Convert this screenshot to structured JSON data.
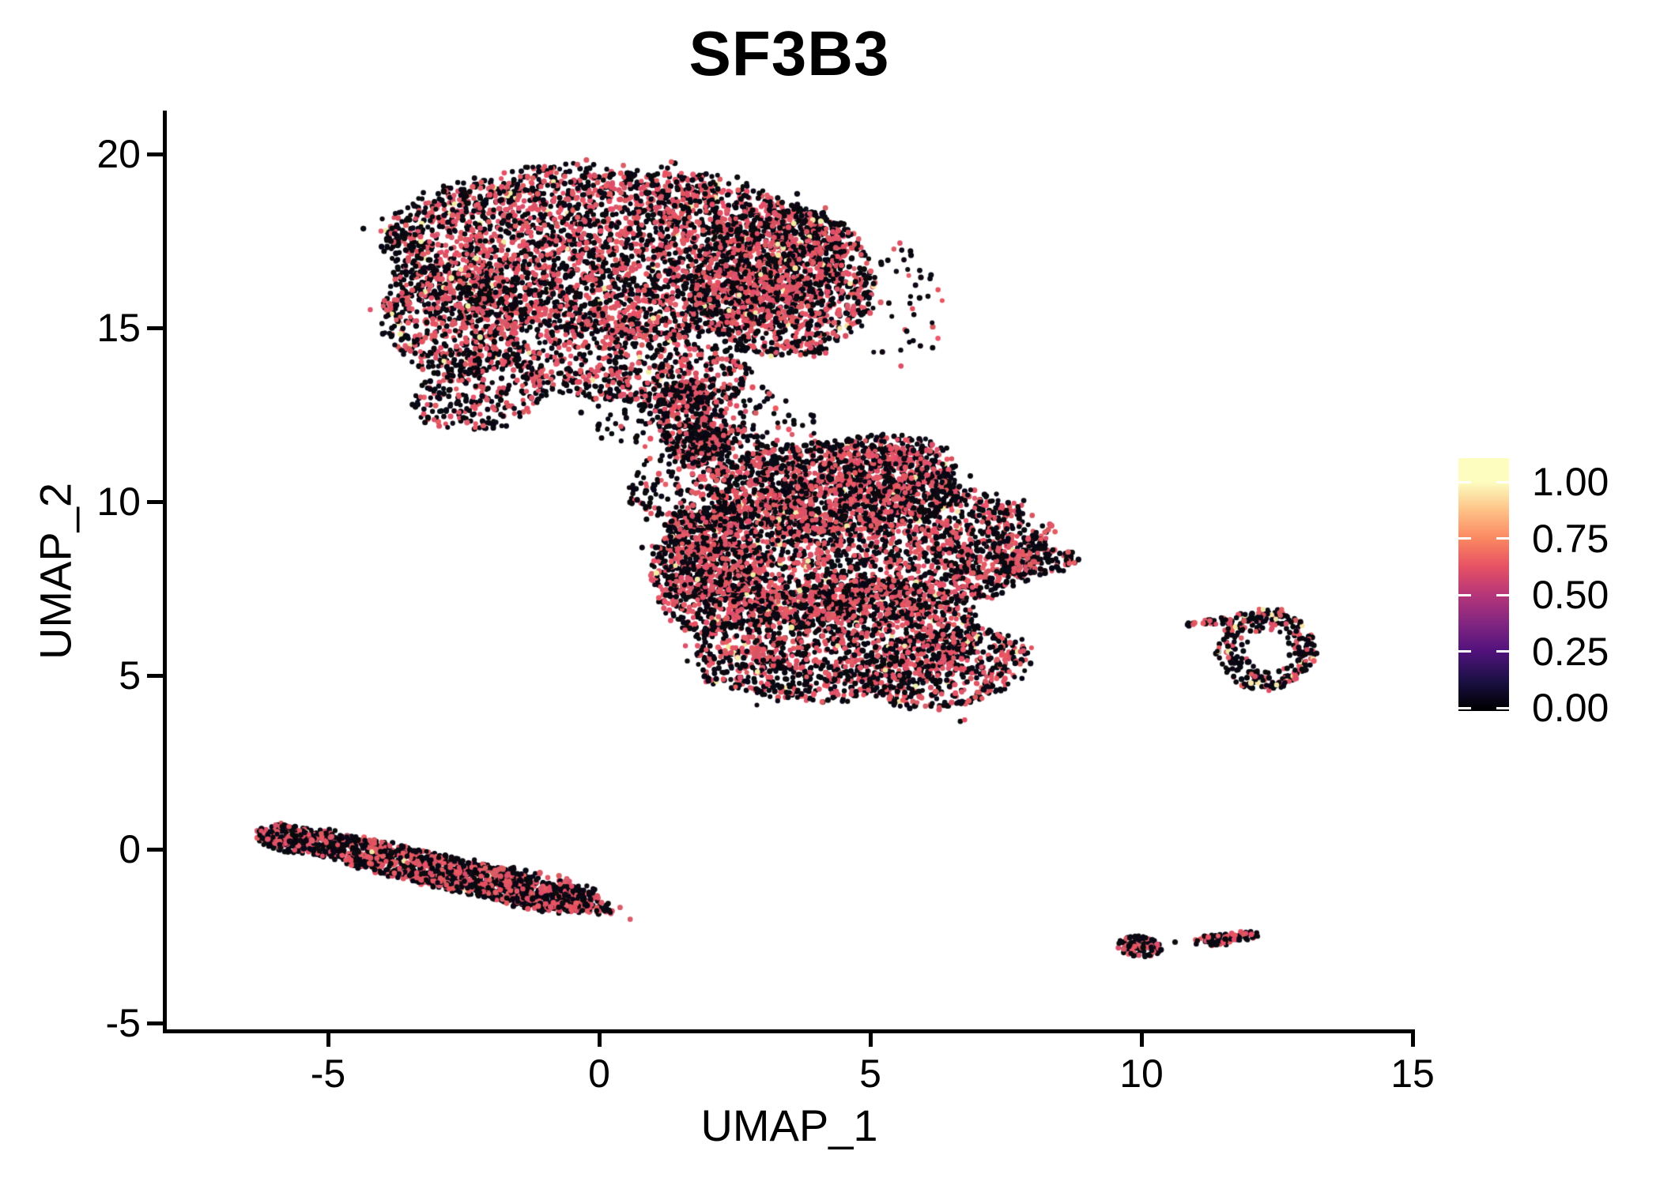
{
  "title": "SF3B3",
  "chart_data": {
    "type": "scatter",
    "title": "SF3B3",
    "xlabel": "UMAP_1",
    "ylabel": "UMAP_2",
    "x_ticks": [
      -5,
      0,
      5,
      10,
      15
    ],
    "y_ticks": [
      20,
      15,
      10,
      5,
      0,
      -5
    ],
    "xlim": [
      -8.3,
      15.3
    ],
    "ylim": [
      -5.2,
      21.2
    ],
    "grid": false,
    "legend_position": "right",
    "legend": {
      "tick_labels": [
        "1.00",
        "0.75",
        "0.50",
        "0.25",
        "0.00"
      ],
      "tick_values": [
        1.0,
        0.75,
        0.5,
        0.25,
        0.0
      ],
      "colormap": "magma",
      "stops": [
        {
          "v": 0.0,
          "color": "#000004"
        },
        {
          "v": 0.125,
          "color": "#1D1147"
        },
        {
          "v": 0.25,
          "color": "#51127C"
        },
        {
          "v": 0.375,
          "color": "#822681"
        },
        {
          "v": 0.5,
          "color": "#B63679"
        },
        {
          "v": 0.625,
          "color": "#E65164"
        },
        {
          "v": 0.75,
          "color": "#FB8861"
        },
        {
          "v": 0.875,
          "color": "#FEC287"
        },
        {
          "v": 1.0,
          "color": "#FCFDBF"
        }
      ]
    },
    "point_colors": {
      "low": "#07060E",
      "mid": "#E25464",
      "high": "#F2ECA4"
    },
    "point_radius_px": 3.3,
    "clusters": [
      {
        "name": "top-blob-main",
        "cx": 0.3,
        "cy": 17.2,
        "rx": 4.3,
        "ry": 2.45,
        "rot": -5,
        "n": 3600,
        "mix": [
          0.52,
          0.465,
          0.015
        ]
      },
      {
        "name": "top-blob-right-lobe",
        "cx": 3.4,
        "cy": 16.3,
        "rx": 1.7,
        "ry": 2.2,
        "rot": 0,
        "n": 1250,
        "mix": [
          0.52,
          0.465,
          0.015
        ]
      },
      {
        "name": "top-blob-left-lobe",
        "cx": -2.7,
        "cy": 15.2,
        "rx": 1.35,
        "ry": 1.6,
        "rot": 15,
        "n": 650,
        "mix": [
          0.52,
          0.455,
          0.025
        ]
      },
      {
        "name": "top-blob-lowleft",
        "cx": -2.2,
        "cy": 13.1,
        "rx": 1.3,
        "ry": 1.0,
        "rot": 30,
        "n": 260,
        "mix": [
          0.62,
          0.37,
          0.01
        ]
      },
      {
        "name": "top-blob-bottom",
        "cx": 0.6,
        "cy": 13.9,
        "rx": 2.3,
        "ry": 1.1,
        "rot": -10,
        "n": 600,
        "mix": [
          0.52,
          0.465,
          0.015
        ]
      },
      {
        "name": "neck",
        "cx": 1.7,
        "cy": 12.3,
        "rx": 0.65,
        "ry": 1.25,
        "rot": 10,
        "n": 300,
        "mix": [
          0.55,
          0.44,
          0.01
        ]
      },
      {
        "name": "neck-halo",
        "cx": 1.4,
        "cy": 12.6,
        "rx": 1.6,
        "ry": 1.4,
        "rot": 0,
        "n": 130,
        "mix": [
          0.68,
          0.32,
          0.0
        ]
      },
      {
        "name": "right-of-top-sparse",
        "cx": 5.6,
        "cy": 15.6,
        "rx": 0.8,
        "ry": 1.9,
        "rot": 0,
        "n": 45,
        "mix": [
          0.7,
          0.3,
          0.0
        ]
      },
      {
        "name": "mid-blob-main",
        "cx": 4.7,
        "cy": 8.6,
        "rx": 3.55,
        "ry": 2.1,
        "rot": 5,
        "n": 2500,
        "mix": [
          0.52,
          0.465,
          0.015
        ]
      },
      {
        "name": "mid-blob-top",
        "cx": 4.3,
        "cy": 10.4,
        "rx": 2.3,
        "ry": 1.35,
        "rot": 0,
        "n": 1000,
        "mix": [
          0.52,
          0.465,
          0.015
        ]
      },
      {
        "name": "mid-blob-top-bump",
        "cx": 5.3,
        "cy": 11.1,
        "rx": 1.3,
        "ry": 0.85,
        "rot": 0,
        "n": 380,
        "mix": [
          0.52,
          0.465,
          0.015
        ]
      },
      {
        "name": "mid-blob-bottom",
        "cx": 4.4,
        "cy": 6.0,
        "rx": 2.7,
        "ry": 1.7,
        "rot": 12,
        "n": 1500,
        "mix": [
          0.54,
          0.445,
          0.015
        ]
      },
      {
        "name": "mid-right-arm",
        "cx": 8.05,
        "cy": 8.3,
        "rx": 0.8,
        "ry": 0.42,
        "rot": 5,
        "n": 150,
        "mix": [
          0.58,
          0.41,
          0.01
        ]
      },
      {
        "name": "bridge-upper-left",
        "cx": 2.5,
        "cy": 11.3,
        "rx": 1.4,
        "ry": 0.85,
        "rot": -25,
        "n": 170,
        "mix": [
          0.6,
          0.39,
          0.01
        ]
      },
      {
        "name": "mid-left-bulge",
        "cx": 2.0,
        "cy": 8.0,
        "rx": 1.05,
        "ry": 1.8,
        "rot": 0,
        "n": 650,
        "mix": [
          0.53,
          0.455,
          0.015
        ]
      },
      {
        "name": "mid-lowright-bulge",
        "cx": 6.4,
        "cy": 5.2,
        "rx": 1.6,
        "ry": 1.1,
        "rot": 20,
        "n": 500,
        "mix": [
          0.56,
          0.425,
          0.015
        ]
      },
      {
        "name": "bridge-sparse",
        "cx": 2.4,
        "cy": 12.4,
        "rx": 1.7,
        "ry": 1.0,
        "rot": -10,
        "n": 110,
        "mix": [
          0.66,
          0.34,
          0.0
        ]
      },
      {
        "name": "mid-left-sparse",
        "cx": 1.5,
        "cy": 10.3,
        "rx": 0.95,
        "ry": 1.1,
        "rot": 0,
        "n": 160,
        "mix": [
          0.6,
          0.4,
          0.0
        ]
      },
      {
        "name": "left-streak",
        "cx": -3.0,
        "cy": -0.6,
        "rx": 3.4,
        "ry": 0.48,
        "rot": -20,
        "n": 1350,
        "mix": [
          0.58,
          0.415,
          0.005
        ]
      },
      {
        "name": "left-streak-head",
        "cx": -5.75,
        "cy": 0.3,
        "rx": 0.6,
        "ry": 0.38,
        "rot": -20,
        "n": 220,
        "mix": [
          0.55,
          0.445,
          0.005
        ]
      },
      {
        "name": "left-streak-mid",
        "cx": -1.3,
        "cy": -1.15,
        "rx": 1.6,
        "ry": 0.55,
        "rot": -18,
        "n": 280,
        "mix": [
          0.6,
          0.395,
          0.005
        ]
      },
      {
        "name": "right-ring",
        "type": "ring",
        "cx": 12.3,
        "cy": 5.75,
        "r0": 0.42,
        "r1": 1.0,
        "sx": 0.88,
        "sy": 1.15,
        "n": 300,
        "mix": [
          0.64,
          0.29,
          0.07
        ]
      },
      {
        "name": "right-ring-arm",
        "cx": 11.45,
        "cy": 6.55,
        "rx": 0.62,
        "ry": 0.14,
        "rot": 8,
        "n": 36,
        "mix": [
          0.6,
          0.4,
          0.0
        ]
      },
      {
        "name": "tiny-left",
        "cx": 9.95,
        "cy": -2.8,
        "rx": 0.44,
        "ry": 0.3,
        "rot": -15,
        "n": 95,
        "mix": [
          0.68,
          0.32,
          0.0
        ]
      },
      {
        "name": "tiny-right-a",
        "cx": 11.35,
        "cy": -2.62,
        "rx": 0.42,
        "ry": 0.17,
        "rot": 5,
        "n": 50,
        "mix": [
          0.52,
          0.48,
          0.0
        ]
      },
      {
        "name": "tiny-right-b",
        "cx": 11.85,
        "cy": -2.5,
        "rx": 0.36,
        "ry": 0.14,
        "rot": 8,
        "n": 32,
        "mix": [
          0.5,
          0.5,
          0.0
        ]
      }
    ],
    "outliers": [
      {
        "x": 6.66,
        "y": 3.68,
        "c": "low"
      },
      {
        "x": 6.74,
        "y": 3.72,
        "c": "mid"
      },
      {
        "x": 10.62,
        "y": -2.67,
        "c": "low"
      }
    ]
  }
}
